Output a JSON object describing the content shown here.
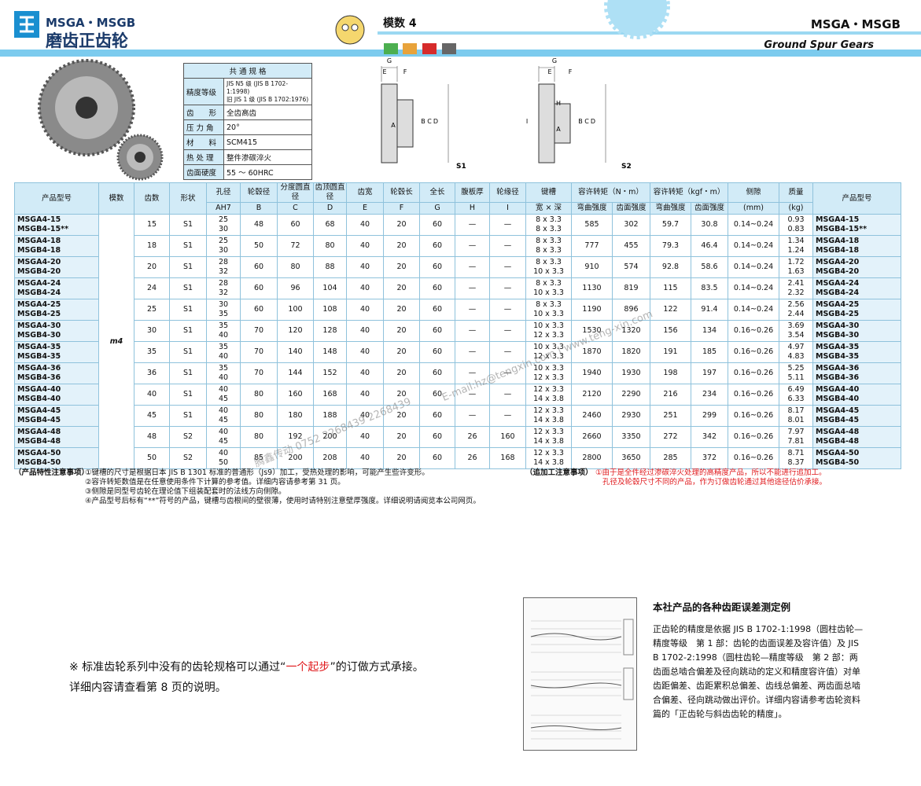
{
  "header": {
    "series": "MSGA・MSGB",
    "title": "磨齿正齿轮",
    "module": "模数 4",
    "series_right": "MSGA・MSGB",
    "title_en": "Ground Spur Gears"
  },
  "spec": {
    "title": "共 通 规 格",
    "rows": [
      {
        "label": "精度等级",
        "value": [
          "JIS N5 级 (JIS B 1702-1:1998)",
          "旧 JIS 1 级 (JIS B 1702:1976)"
        ]
      },
      {
        "label": "齿　　形",
        "value": [
          "全齿高齿"
        ]
      },
      {
        "label": "压 力 角",
        "value": [
          "20°"
        ]
      },
      {
        "label": "材　　料",
        "value": [
          "SCM415"
        ]
      },
      {
        "label": "热 处 理",
        "value": [
          "整件渗碳淬火"
        ]
      },
      {
        "label": "齿面硬度",
        "value": [
          "55 ～ 60HRC"
        ]
      }
    ]
  },
  "drawings": [
    {
      "label": "S1",
      "dims": [
        "G",
        "E",
        "F",
        "A",
        "B",
        "C",
        "D"
      ]
    },
    {
      "label": "S2",
      "dims": [
        "G",
        "E",
        "F",
        "H",
        "A",
        "B",
        "C",
        "D",
        "I"
      ]
    }
  ],
  "table": {
    "header_top": [
      "产品型号",
      "模数",
      "齿数",
      "形状",
      "孔径",
      "轮毂径",
      "分度圆直径",
      "齿顶圆直径",
      "齿宽",
      "轮毂长",
      "全长",
      "腹板厚",
      "轮缘径",
      "键槽",
      "容许转矩（N・m）",
      "容许转矩（kgf・m）",
      "侧隙",
      "质量",
      "产品型号"
    ],
    "header_sub": [
      "AH7",
      "B",
      "C",
      "D",
      "E",
      "F",
      "G",
      "H",
      "I",
      "宽 × 深",
      "弯曲强度",
      "齿面强度",
      "弯曲强度",
      "齿面强度",
      "(mm)",
      "(kg)"
    ],
    "module": "m4",
    "rows": [
      {
        "model": [
          "MSGA4-15",
          "MSGB4-15**"
        ],
        "teeth": "15",
        "shape": "S1",
        "bore": [
          "25",
          "30"
        ],
        "hub": "48",
        "pitch": "60",
        "tip": "68",
        "width": "40",
        "hub_len": "20",
        "total": "60",
        "web": "—",
        "rim": "—",
        "keyway": [
          "8 x 3.3",
          "8 x 3.3"
        ],
        "bend_nm": "585",
        "tooth_nm": "302",
        "bend_kgf": "59.7",
        "tooth_kgf": "30.8",
        "backlash": "0.14~0.24",
        "mass": [
          "0.93",
          "0.83"
        ]
      },
      {
        "model": [
          "MSGA4-18",
          "MSGB4-18"
        ],
        "teeth": "18",
        "shape": "S1",
        "bore": [
          "25",
          "30"
        ],
        "hub": "50",
        "pitch": "72",
        "tip": "80",
        "width": "40",
        "hub_len": "20",
        "total": "60",
        "web": "—",
        "rim": "—",
        "keyway": [
          "8 x 3.3",
          "8 x 3.3"
        ],
        "bend_nm": "777",
        "tooth_nm": "455",
        "bend_kgf": "79.3",
        "tooth_kgf": "46.4",
        "backlash": "0.14~0.24",
        "mass": [
          "1.34",
          "1.24"
        ]
      },
      {
        "model": [
          "MSGA4-20",
          "MSGB4-20"
        ],
        "teeth": "20",
        "shape": "S1",
        "bore": [
          "28",
          "32"
        ],
        "hub": "60",
        "pitch": "80",
        "tip": "88",
        "width": "40",
        "hub_len": "20",
        "total": "60",
        "web": "—",
        "rim": "—",
        "keyway": [
          "8 x 3.3",
          "10 x 3.3"
        ],
        "bend_nm": "910",
        "tooth_nm": "574",
        "bend_kgf": "92.8",
        "tooth_kgf": "58.6",
        "backlash": "0.14~0.24",
        "mass": [
          "1.72",
          "1.63"
        ]
      },
      {
        "model": [
          "MSGA4-24",
          "MSGB4-24"
        ],
        "teeth": "24",
        "shape": "S1",
        "bore": [
          "28",
          "32"
        ],
        "hub": "60",
        "pitch": "96",
        "tip": "104",
        "width": "40",
        "hub_len": "20",
        "total": "60",
        "web": "—",
        "rim": "—",
        "keyway": [
          "8 x 3.3",
          "10 x 3.3"
        ],
        "bend_nm": "1130",
        "tooth_nm": "819",
        "bend_kgf": "115",
        "tooth_kgf": "83.5",
        "backlash": "0.14~0.24",
        "mass": [
          "2.41",
          "2.32"
        ]
      },
      {
        "model": [
          "MSGA4-25",
          "MSGB4-25"
        ],
        "teeth": "25",
        "shape": "S1",
        "bore": [
          "30",
          "35"
        ],
        "hub": "60",
        "pitch": "100",
        "tip": "108",
        "width": "40",
        "hub_len": "20",
        "total": "60",
        "web": "—",
        "rim": "—",
        "keyway": [
          "8 x 3.3",
          "10 x 3.3"
        ],
        "bend_nm": "1190",
        "tooth_nm": "896",
        "bend_kgf": "122",
        "tooth_kgf": "91.4",
        "backlash": "0.14~0.24",
        "mass": [
          "2.56",
          "2.44"
        ]
      },
      {
        "model": [
          "MSGA4-30",
          "MSGB4-30"
        ],
        "teeth": "30",
        "shape": "S1",
        "bore": [
          "35",
          "40"
        ],
        "hub": "70",
        "pitch": "120",
        "tip": "128",
        "width": "40",
        "hub_len": "20",
        "total": "60",
        "web": "—",
        "rim": "—",
        "keyway": [
          "10 x 3.3",
          "12 x 3.3"
        ],
        "bend_nm": "1530",
        "tooth_nm": "1320",
        "bend_kgf": "156",
        "tooth_kgf": "134",
        "backlash": "0.16~0.26",
        "mass": [
          "3.69",
          "3.54"
        ]
      },
      {
        "model": [
          "MSGA4-35",
          "MSGB4-35"
        ],
        "teeth": "35",
        "shape": "S1",
        "bore": [
          "35",
          "40"
        ],
        "hub": "70",
        "pitch": "140",
        "tip": "148",
        "width": "40",
        "hub_len": "20",
        "total": "60",
        "web": "—",
        "rim": "—",
        "keyway": [
          "10 x 3.3",
          "12 x 3.3"
        ],
        "bend_nm": "1870",
        "tooth_nm": "1820",
        "bend_kgf": "191",
        "tooth_kgf": "185",
        "backlash": "0.16~0.26",
        "mass": [
          "4.97",
          "4.83"
        ]
      },
      {
        "model": [
          "MSGA4-36",
          "MSGB4-36"
        ],
        "teeth": "36",
        "shape": "S1",
        "bore": [
          "35",
          "40"
        ],
        "hub": "70",
        "pitch": "144",
        "tip": "152",
        "width": "40",
        "hub_len": "20",
        "total": "60",
        "web": "—",
        "rim": "—",
        "keyway": [
          "10 x 3.3",
          "12 x 3.3"
        ],
        "bend_nm": "1940",
        "tooth_nm": "1930",
        "bend_kgf": "198",
        "tooth_kgf": "197",
        "backlash": "0.16~0.26",
        "mass": [
          "5.25",
          "5.11"
        ]
      },
      {
        "model": [
          "MSGA4-40",
          "MSGB4-40"
        ],
        "teeth": "40",
        "shape": "S1",
        "bore": [
          "40",
          "45"
        ],
        "hub": "80",
        "pitch": "160",
        "tip": "168",
        "width": "40",
        "hub_len": "20",
        "total": "60",
        "web": "—",
        "rim": "—",
        "keyway": [
          "12 x 3.3",
          "14 x 3.8"
        ],
        "bend_nm": "2120",
        "tooth_nm": "2290",
        "bend_kgf": "216",
        "tooth_kgf": "234",
        "backlash": "0.16~0.26",
        "mass": [
          "6.49",
          "6.33"
        ]
      },
      {
        "model": [
          "MSGA4-45",
          "MSGB4-45"
        ],
        "teeth": "45",
        "shape": "S1",
        "bore": [
          "40",
          "45"
        ],
        "hub": "80",
        "pitch": "180",
        "tip": "188",
        "width": "40",
        "hub_len": "20",
        "total": "60",
        "web": "—",
        "rim": "—",
        "keyway": [
          "12 x 3.3",
          "14 x 3.8"
        ],
        "bend_nm": "2460",
        "tooth_nm": "2930",
        "bend_kgf": "251",
        "tooth_kgf": "299",
        "backlash": "0.16~0.26",
        "mass": [
          "8.17",
          "8.01"
        ]
      },
      {
        "model": [
          "MSGA4-48",
          "MSGB4-48"
        ],
        "teeth": "48",
        "shape": "S2",
        "bore": [
          "40",
          "45"
        ],
        "hub": "80",
        "pitch": "192",
        "tip": "200",
        "width": "40",
        "hub_len": "20",
        "total": "60",
        "web": "26",
        "rim": "160",
        "keyway": [
          "12 x 3.3",
          "14 x 3.8"
        ],
        "bend_nm": "2660",
        "tooth_nm": "3350",
        "bend_kgf": "272",
        "tooth_kgf": "342",
        "backlash": "0.16~0.26",
        "mass": [
          "7.97",
          "7.81"
        ]
      },
      {
        "model": [
          "MSGA4-50",
          "MSGB4-50"
        ],
        "teeth": "50",
        "shape": "S2",
        "bore": [
          "40",
          "50"
        ],
        "hub": "85",
        "pitch": "200",
        "tip": "208",
        "width": "40",
        "hub_len": "20",
        "total": "60",
        "web": "26",
        "rim": "168",
        "keyway": [
          "12 x 3.3",
          "14 x 3.8"
        ],
        "bend_nm": "2800",
        "tooth_nm": "3650",
        "bend_kgf": "285",
        "tooth_kgf": "372",
        "backlash": "0.16~0.26",
        "mass": [
          "8.71",
          "8.37"
        ]
      }
    ]
  },
  "notes": {
    "label": "（产品特性注意事项）",
    "items": [
      "①键槽的尺寸是根据日本 JIS B 1301 标准的普通形（Js9）加工，受热处理的影响，可能产生些许变形。",
      "②容许转矩数值是在任意使用条件下计算的参考值。详细内容请参考第 31 页。",
      "③侧隙是同型号齿轮在理论值下组装配套时的法线方向侧隙。",
      "④产品型号后标有“**”符号的产品，键槽与齿根间的壁很薄，使用时请特别注意壁厚强度。详细说明请阅览本公司网页。"
    ]
  },
  "extra_notes": {
    "label": "（追加工注意事项）",
    "items": [
      "①由于是全件经过渗碳淬火处理的高精度产品，所以不能进行追加工。",
      "孔径及轮毂尺寸不同的产品，作为订做齿轮通过其他途径估价承接。"
    ]
  },
  "custom": {
    "line1": [
      "※ 标准齿轮系列中没有的齿轮规格可以通过“",
      "一个起步",
      "”的订做方式承接。"
    ],
    "line2": "详细内容请查看第 8 页的说明。"
  },
  "measure": {
    "title": "本社产品的各种齿距误差测定例",
    "text": "正齿轮的精度是依据 JIS B 1702-1:1998（圆柱齿轮—精度等级　第 1 部：齿轮的齿面误差及容许值）及 JIS B 1702-2:1998（圆柱齿轮—精度等级　第 2 部：两齿面总啮合偏差及径向跳动的定义和精度容许值）对单齿距偏差、齿距累积总偏差、齿线总偏差、两齿面总啮合偏差、径向跳动做出评价。详细内容请参考齿轮资料篇的「正齿轮与斜齿齿轮的精度」。"
  },
  "watermark": [
    "E-mail:hz@tengxin.com  |  www.teng-xin.com",
    "腾鑫传动 0752 2268439  2268439"
  ]
}
